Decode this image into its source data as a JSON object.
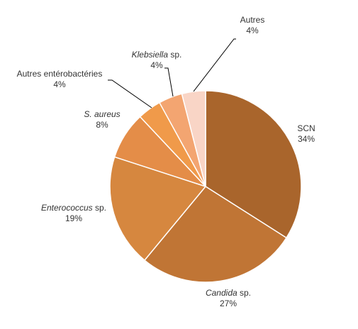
{
  "chart_data": {
    "type": "pie",
    "title": "",
    "slices": [
      {
        "label": "SCN",
        "italic": false,
        "value": 34,
        "value_label": "34%",
        "color": "#A9652C"
      },
      {
        "label": "Candida sp.",
        "italic": true,
        "italic_part": "Candida",
        "rest_part": " sp.",
        "value": 27,
        "value_label": "27%",
        "color": "#C07535"
      },
      {
        "label": "Enterococcus sp.",
        "italic": true,
        "italic_part": "Enterococcus",
        "rest_part": " sp.",
        "value": 19,
        "value_label": "19%",
        "color": "#D6873F"
      },
      {
        "label": "S. aureus",
        "italic": true,
        "italic_part": "S. aureus",
        "rest_part": "",
        "value": 8,
        "value_label": "8%",
        "color": "#E48D48"
      },
      {
        "label": "Autres entérobactéries",
        "italic": false,
        "value": 4,
        "value_label": "4%",
        "color": "#F09A4A"
      },
      {
        "label": "Klebsiella sp.",
        "italic": true,
        "italic_part": "Klebsiella",
        "rest_part": " sp.",
        "value": 4,
        "value_label": "4%",
        "color": "#F3A571"
      },
      {
        "label": "Autres",
        "italic": false,
        "value": 4,
        "value_label": "4%",
        "color": "#F9D5C6"
      }
    ]
  }
}
